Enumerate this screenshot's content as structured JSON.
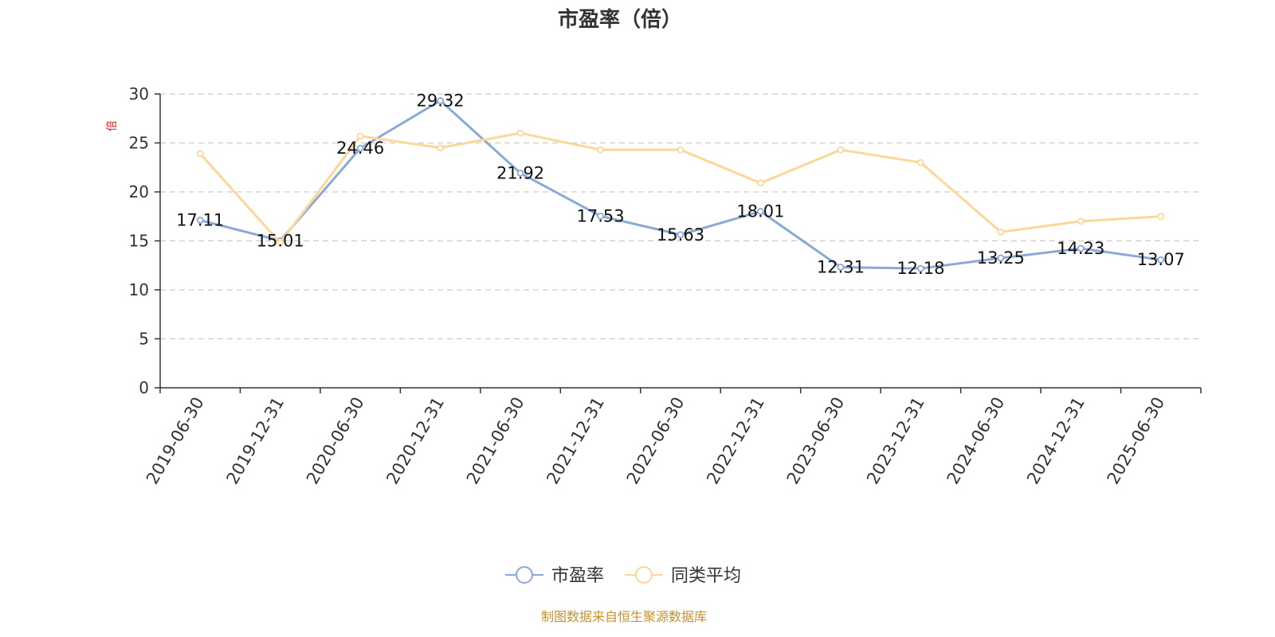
{
  "chart_data": {
    "type": "line",
    "title": "市盈率（倍）",
    "ylabel": "倍",
    "xlabel": "",
    "ylim": [
      0,
      30
    ],
    "yticks": [
      0,
      5,
      10,
      15,
      20,
      25,
      30
    ],
    "grid": true,
    "legend_position": "bottom",
    "categories": [
      "2019-06-30",
      "2019-12-31",
      "2020-06-30",
      "2020-12-31",
      "2021-06-30",
      "2021-12-31",
      "2022-06-30",
      "2022-12-31",
      "2023-06-30",
      "2023-12-31",
      "2024-06-30",
      "2024-12-31",
      "2025-06-30"
    ],
    "series": [
      {
        "name": "市盈率",
        "color": "#8aa9d6",
        "values": [
          17.11,
          15.01,
          24.46,
          29.32,
          21.92,
          17.53,
          15.63,
          18.01,
          12.31,
          12.18,
          13.25,
          14.23,
          13.07
        ],
        "labels": [
          "17.11",
          "15.01",
          "24.46",
          "29.32",
          "21.92",
          "17.53",
          "15.63",
          "18.01",
          "12.31",
          "12.18",
          "13.25",
          "14.23",
          "13.07"
        ]
      },
      {
        "name": "同类平均",
        "color": "#f9d898",
        "values": [
          23.9,
          14.8,
          25.7,
          24.5,
          26.0,
          24.3,
          24.3,
          20.9,
          24.3,
          23.0,
          15.9,
          17.0,
          17.5
        ]
      }
    ],
    "source": "制图数据来自恒生聚源数据库"
  }
}
